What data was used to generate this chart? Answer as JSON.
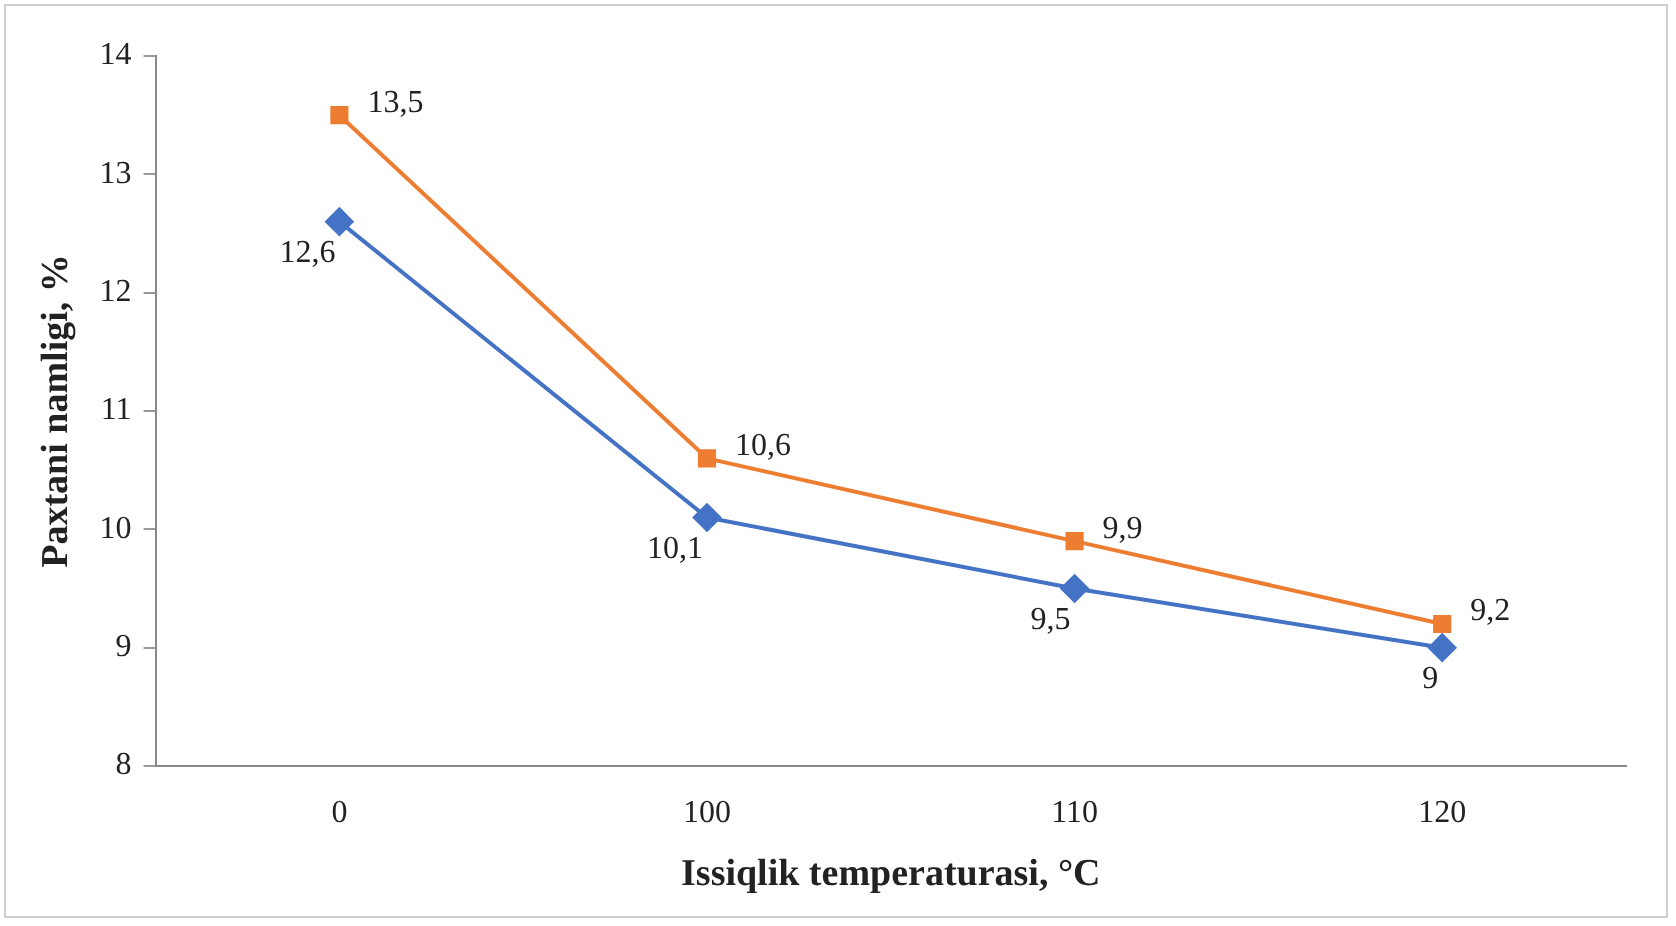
{
  "chart_data": {
    "type": "line",
    "xlabel": "Issiqlik temperaturasi, °C",
    "ylabel": "Paxtani namligi, %",
    "categories": [
      "0",
      "100",
      "110",
      "120"
    ],
    "series": [
      {
        "color": "#4472c4",
        "marker": "diamond",
        "values": [
          12.6,
          10.1,
          9.5,
          9
        ],
        "value_labels": [
          "12,6",
          "10,1",
          "9,5",
          "9"
        ]
      },
      {
        "color": "#ed7d31",
        "marker": "square",
        "values": [
          13.5,
          10.6,
          9.9,
          9.2
        ],
        "value_labels": [
          "13,5",
          "10,6",
          "9,9",
          "9,2"
        ]
      }
    ],
    "ylim": [
      8,
      14
    ],
    "yticks": [
      8,
      9,
      10,
      11,
      12,
      13,
      14
    ],
    "grid": false,
    "legend": false,
    "line_style": "solid"
  }
}
